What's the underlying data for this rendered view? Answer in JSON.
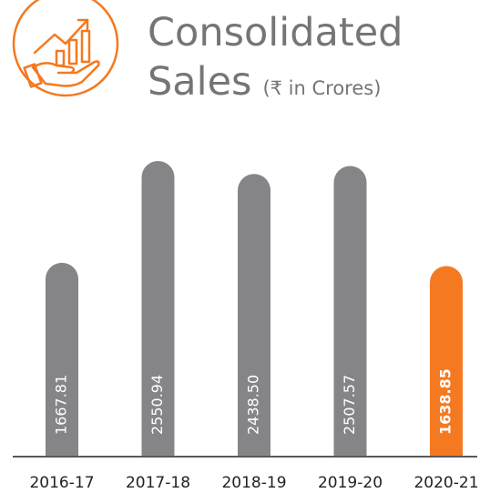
{
  "chart_data": {
    "type": "bar",
    "title": "Consolidated",
    "title_line2": "Sales",
    "subtitle": "(₹ in Crores)",
    "categories": [
      "2016-17",
      "2017-18",
      "2018-19",
      "2019-20",
      "2020-21"
    ],
    "values": [
      1667.81,
      2550.94,
      2438.5,
      2507.57,
      1638.85
    ],
    "value_labels": [
      "1667.81",
      "2550.94",
      "2438.50",
      "2507.57",
      "1638.85"
    ],
    "colors": [
      "#858587",
      "#858587",
      "#858587",
      "#858587",
      "#f47920"
    ]
  }
}
